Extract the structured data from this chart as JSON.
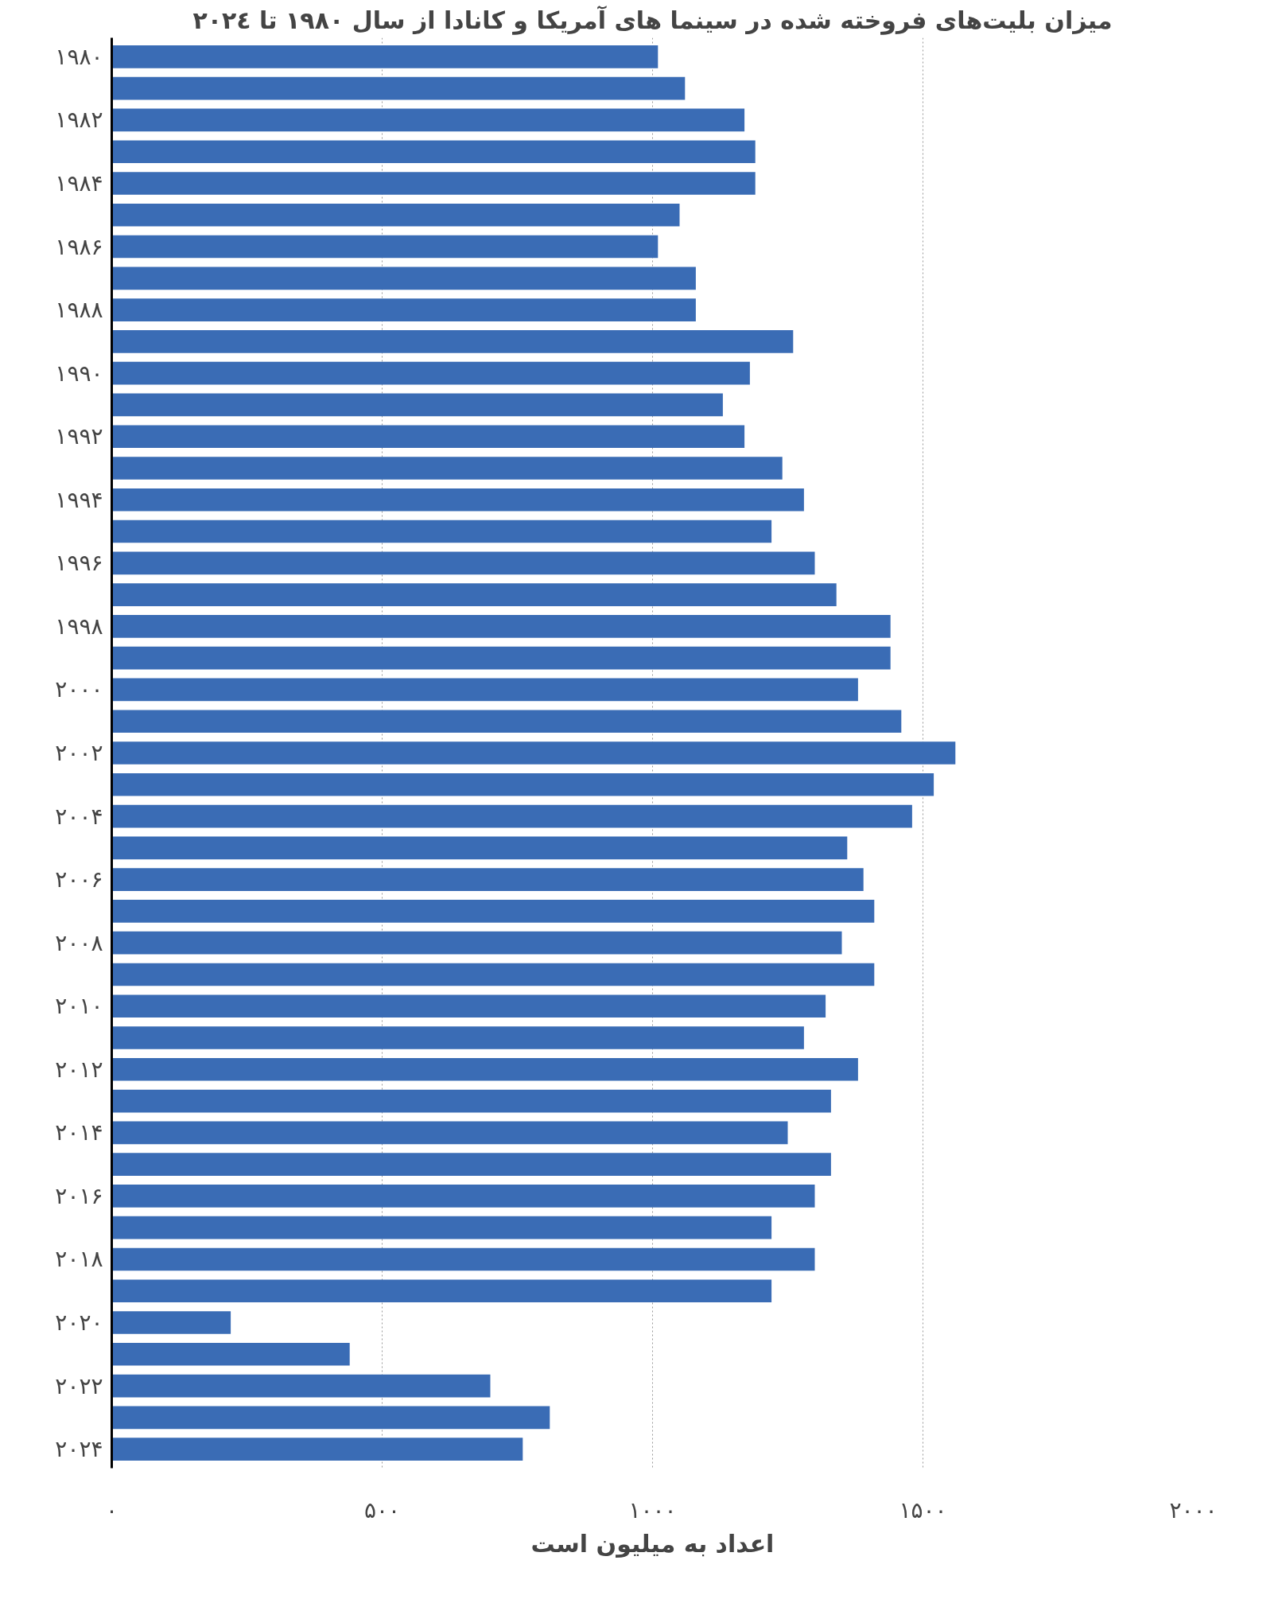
{
  "chart_data": {
    "type": "bar",
    "orientation": "horizontal",
    "title": "میزان بلیت‌های فروخته شده در سینما های آمریکا و کانادا از سال ۱۹۸۰ تا ۲۰۲٤",
    "xlabel": "اعداد به میلیون است",
    "categories": [
      "۱۹۸۰",
      null,
      "۱۹۸۲",
      null,
      "۱۹۸۴",
      null,
      "۱۹۸۶",
      null,
      "۱۹۸۸",
      null,
      "۱۹۹۰",
      null,
      "۱۹۹۲",
      null,
      "۱۹۹۴",
      null,
      "۱۹۹۶",
      null,
      "۱۹۹۸",
      null,
      "۲۰۰۰",
      null,
      "۲۰۰۲",
      null,
      "۲۰۰۴",
      null,
      "۲۰۰۶",
      null,
      "۲۰۰۸",
      null,
      "۲۰۱۰",
      null,
      "۲۰۱۲",
      null,
      "۲۰۱۴",
      null,
      "۲۰۱۶",
      null,
      "۲۰۱۸",
      null,
      "۲۰۲۰",
      null,
      "۲۰۲۲",
      null,
      "۲۰۲۴"
    ],
    "values": [
      1010,
      1060,
      1170,
      1190,
      1190,
      1050,
      1010,
      1080,
      1080,
      1260,
      1180,
      1130,
      1170,
      1240,
      1280,
      1220,
      1300,
      1340,
      1440,
      1440,
      1380,
      1460,
      1560,
      1520,
      1480,
      1360,
      1390,
      1410,
      1350,
      1410,
      1320,
      1280,
      1380,
      1330,
      1250,
      1330,
      1300,
      1220,
      1300,
      1220,
      220,
      440,
      700,
      810,
      760
    ],
    "color": "#3a6cb5",
    "xlim": [
      0,
      2000
    ],
    "xticks": [
      {
        "value": 0,
        "label": "۰"
      },
      {
        "value": 500,
        "label": "۵۰۰"
      },
      {
        "value": 1000,
        "label": "۱۰۰۰"
      },
      {
        "value": 1500,
        "label": "۱۵۰۰"
      },
      {
        "value": 2000,
        "label": "۲۰۰۰"
      }
    ],
    "grid": "x"
  }
}
